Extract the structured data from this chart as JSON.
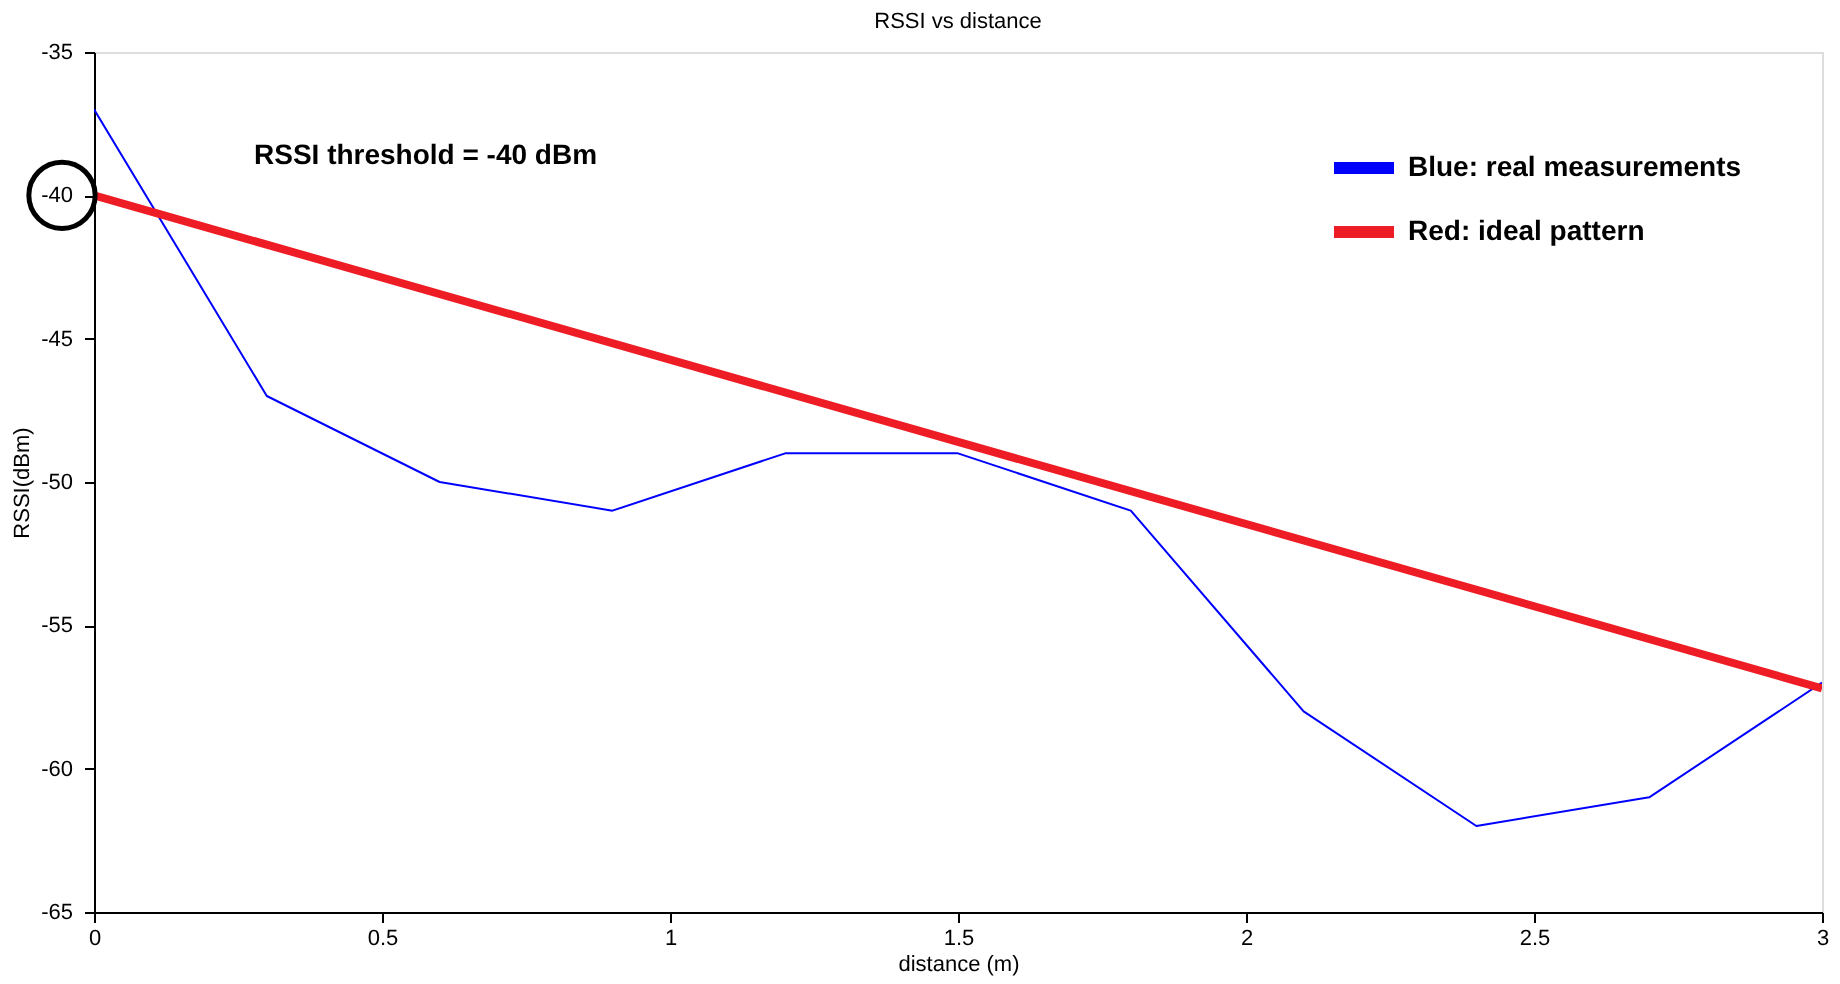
{
  "chart_data": {
    "type": "line",
    "title": "RSSI vs distance",
    "xlabel": "distance (m)",
    "ylabel": "RSSI(dBm)",
    "xlim": [
      0,
      3
    ],
    "ylim": [
      -65,
      -35
    ],
    "xticks": [
      0,
      0.5,
      1,
      1.5,
      2,
      2.5,
      3
    ],
    "yticks": [
      -65,
      -60,
      -55,
      -50,
      -45,
      -40,
      -35
    ],
    "grid": false,
    "legend": "top right",
    "marker": "none",
    "line_style": "solid",
    "series": [
      {
        "name": "Blue: real measurements",
        "color": "#0000ff",
        "x": [
          0,
          0.3,
          0.6,
          0.9,
          1.2,
          1.5,
          1.8,
          2.1,
          2.4,
          2.7,
          3
        ],
        "values": [
          -37,
          -47,
          -50,
          -51,
          -49,
          -49,
          -51,
          -58,
          -62,
          -61,
          -57
        ]
      },
      {
        "name": "Red: ideal pattern",
        "color": "#ee1c24",
        "x": [
          0,
          3
        ],
        "values": [
          -40,
          -57.2
        ]
      }
    ],
    "annotations": [
      "RSSI threshold = -40 dBm"
    ]
  }
}
